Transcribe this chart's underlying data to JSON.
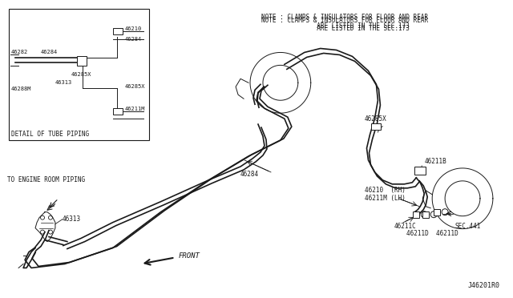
{
  "bg_color": "#ffffff",
  "line_color": "#1a1a1a",
  "title": "J46201R0",
  "note_line1": "NOTE : CLAMPS & INSULATORS FOR FLOOR AND REAR",
  "note_line2": "          ARE LISTED IN THE SEC.173",
  "figsize": [
    6.4,
    3.72
  ],
  "dpi": 100
}
